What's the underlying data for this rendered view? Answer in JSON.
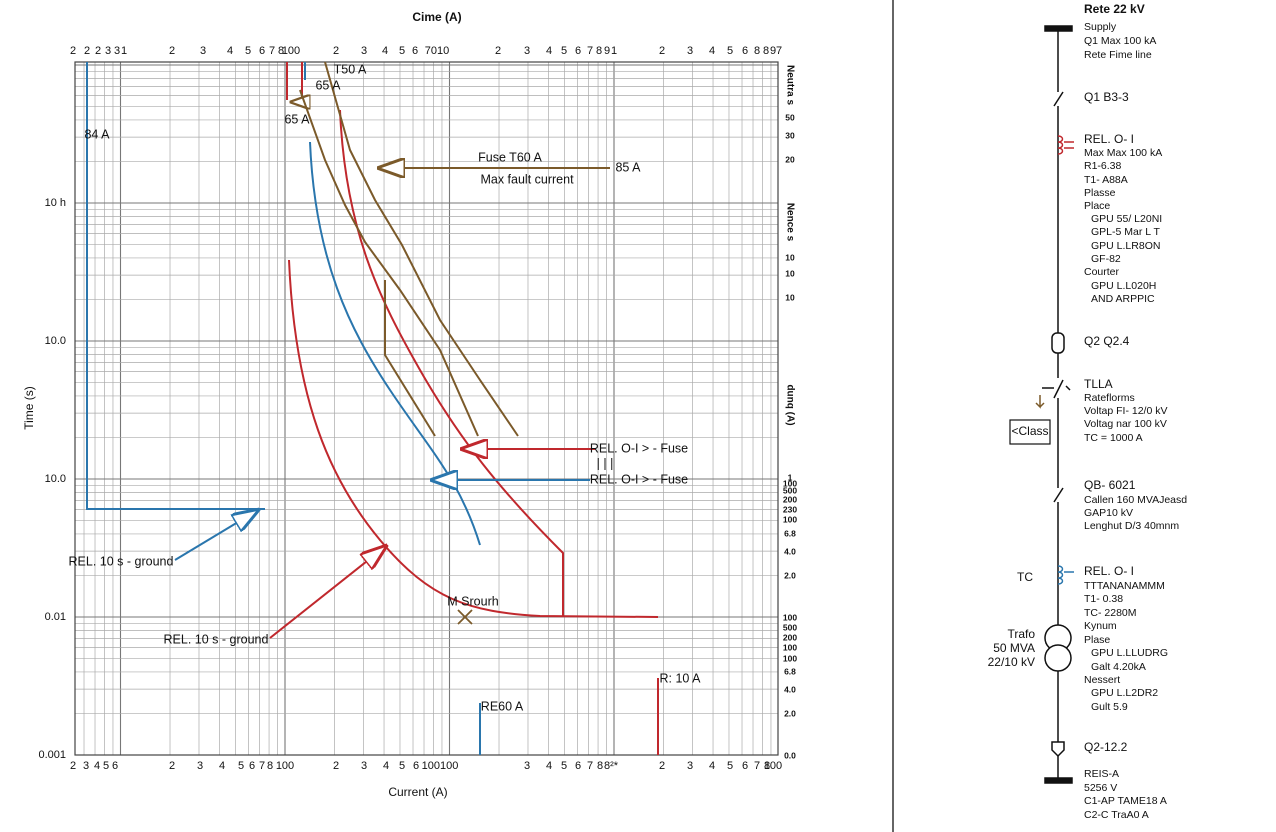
{
  "plot": {
    "title": "Cime (A)",
    "x_label": "Current (A)",
    "y_label": "Time (s)",
    "top_ticks": [
      "2",
      "2",
      "2",
      "3",
      "3",
      "1",
      "2",
      "3",
      "4",
      "5",
      "6",
      "7",
      "8",
      "100",
      "2",
      "3",
      "4",
      "5",
      "6",
      "7010",
      "2",
      "3",
      "4",
      "5",
      "6",
      "7",
      "8",
      "9",
      "1",
      "2",
      "3",
      "4",
      "5",
      "6",
      "8",
      "8",
      "9",
      "7"
    ],
    "bottom_ticks": [
      "2",
      "3",
      "4",
      "5",
      "6",
      "2",
      "3",
      "4",
      "5",
      "6",
      "7",
      "8",
      "100",
      "2",
      "3",
      "4",
      "5",
      "6",
      "100100",
      "3",
      "4",
      "5",
      "6",
      "7",
      "8",
      "8²*",
      "2",
      "3",
      "4",
      "5",
      "6",
      "7",
      "8",
      "100"
    ],
    "left_ticks": [
      "10 h",
      "10.0",
      "10.0",
      "0.01",
      "0.001"
    ],
    "right_ticks": [
      "Neutra s",
      "50",
      "30",
      "20",
      "Nence s",
      "10",
      "10",
      "10",
      "dunq (A)",
      "1",
      "100",
      "500",
      "200",
      "230",
      "100",
      "6.8",
      "4.0",
      "2.0",
      "100",
      "500",
      "200",
      "100",
      "100",
      "6.8",
      "4.0",
      "2.0",
      "0.0"
    ],
    "annotations": [
      "T50 A",
      "65 A",
      "65 A",
      "84 A",
      "Fuse T60 A",
      "Max fault current",
      "85 A",
      "REL. O-I > - Fuse",
      "| | |",
      "REL. O-I > - Fuse",
      "REL. 10 s - ground",
      "REL. 10 s - ground",
      "M Srourh",
      "RE60 A",
      "R: 10 A"
    ]
  },
  "diagram": {
    "bus_title": "Rete 22 kV",
    "class_button": "<Class",
    "side_label": "TC",
    "trafo": [
      "Trafo",
      "50 MVA",
      "22/10 kV"
    ],
    "labels": [
      "Supply",
      "Q1 Max 100 kA",
      "Rete Fime line",
      "Q1 B3-3",
      "REL. O- I",
      "Max Max 100 kA",
      "R1-6.38",
      "T1- A88A",
      "Plasse",
      "Place",
      "GPU 55/ L20NI",
      "GPL-5 Mar L T",
      "GPU L.LR8ON",
      "GF-82",
      "Courter",
      "GPU L.L020H",
      "AND ARPPIC",
      "Q2 Q2.4",
      "TLLA",
      "Rateflorms",
      "Voltap FI- 12/0 kV",
      "Voltag nar 100 kV",
      "TC = 1000 A",
      "QB- 6021",
      "Callen 160 MVAJeasd",
      "GAP10 kV",
      "Lenghut D/3 40mnm",
      "REL. O- I",
      "TTTANANAMMM",
      "T1- 0.38",
      "TC- 2280M",
      "Kynum",
      "Plase",
      "GPU L.LLUDRG",
      "Galt 4.20kA",
      "Nessert",
      "GPU L.L2DR2",
      "Gult 5.9",
      "Q2-12.2",
      "REIS-A",
      "5256 V",
      "C1-AP TAME18 A",
      "C2-C TraA0 A"
    ]
  }
}
